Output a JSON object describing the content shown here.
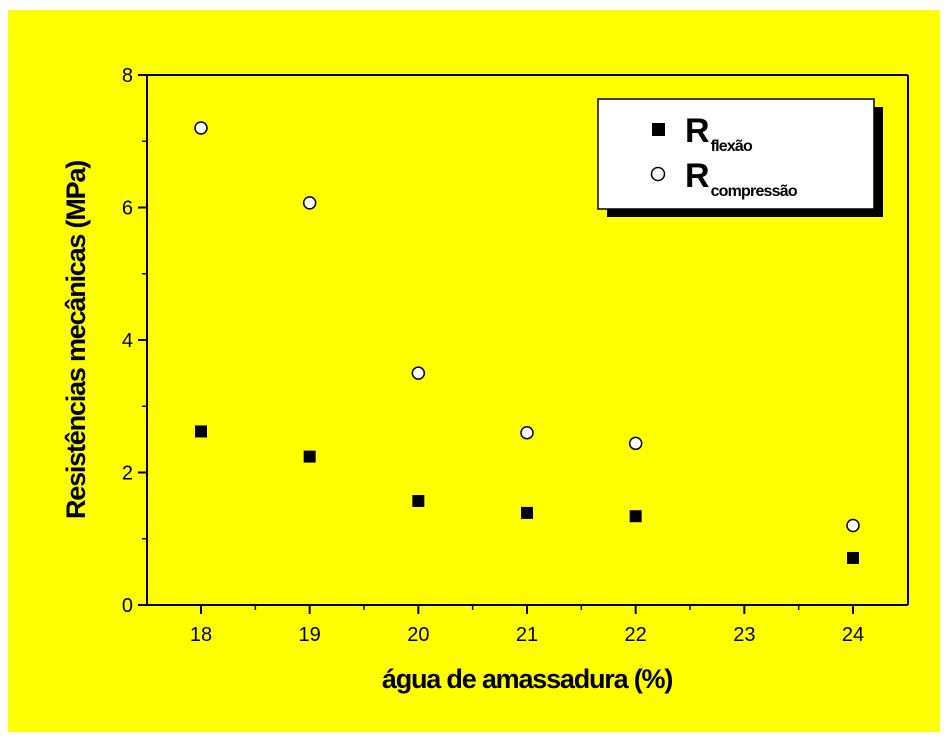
{
  "chart_data": {
    "type": "scatter",
    "xlabel": "água de amassadura (%)",
    "ylabel": "Resistências mecânicas (MPa)",
    "xlim": [
      17.5,
      24.5
    ],
    "ylim": [
      0,
      8
    ],
    "xticks": [
      18,
      19,
      20,
      21,
      22,
      23,
      24
    ],
    "yticks": [
      0,
      2,
      4,
      6,
      8
    ],
    "grid": false,
    "legend_position": "top-right",
    "colors": {
      "background": "#ffff00",
      "plot_background": "#ffff00",
      "marker": "#000000",
      "hollow_fill": "#ffffff"
    },
    "series": [
      {
        "name_main": "R",
        "name_sub": "flexão",
        "marker": "filled-square",
        "x": [
          18,
          19,
          20,
          21,
          22,
          24
        ],
        "y": [
          2.62,
          2.24,
          1.57,
          1.39,
          1.34,
          0.71
        ]
      },
      {
        "name_main": "R",
        "name_sub": "compressão",
        "marker": "open-circle",
        "x": [
          18,
          19,
          20,
          21,
          22,
          24
        ],
        "y": [
          7.2,
          6.07,
          3.5,
          2.6,
          2.44,
          1.2
        ]
      }
    ]
  }
}
